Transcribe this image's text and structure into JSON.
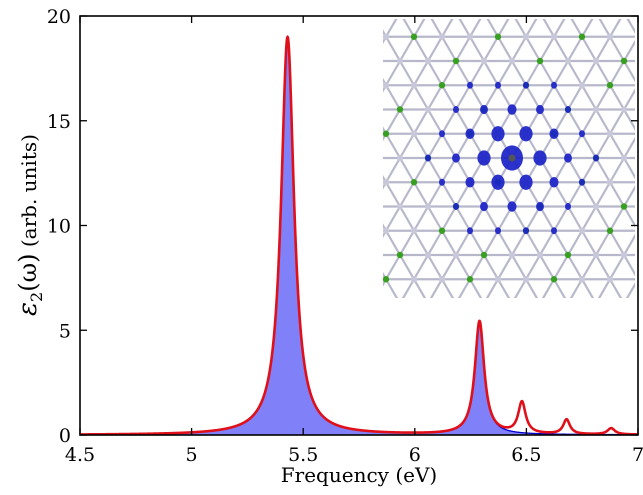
{
  "chart_data": {
    "type": "area",
    "xlabel": "Frequency (eV)",
    "ylabel_math": "ε",
    "ylabel_sub": "2",
    "ylabel_arg": "(ω)",
    "ylabel_units": "(arb. units)",
    "xlim": [
      4.5,
      7
    ],
    "ylim": [
      0,
      20
    ],
    "x_ticks": [
      "4.5",
      "5",
      "5.5",
      "6",
      "6.5",
      "7"
    ],
    "y_ticks": [
      "0",
      "5",
      "10",
      "15",
      "20"
    ],
    "grid": false,
    "series": [
      {
        "style": "filled-area",
        "color": "#8080f8",
        "edge_color": "#0000cc",
        "peaks": [
          {
            "x": 5.43,
            "height": 19.0,
            "width": 0.035
          },
          {
            "x": 6.29,
            "height": 5.4,
            "width": 0.025
          }
        ]
      },
      {
        "style": "line",
        "color": "#e0101a",
        "peaks": [
          {
            "x": 5.43,
            "height": 19.0,
            "width": 0.035
          },
          {
            "x": 6.29,
            "height": 5.4,
            "width": 0.025
          },
          {
            "x": 6.48,
            "height": 1.5,
            "width": 0.02
          },
          {
            "x": 6.68,
            "height": 0.7,
            "width": 0.018
          },
          {
            "x": 6.88,
            "height": 0.3,
            "width": 0.02
          }
        ]
      }
    ],
    "inset": {
      "type": "image",
      "description_colors": {
        "bond": "#b8b8cc",
        "atom_green": "#38a020",
        "orbital": "#1a22c8",
        "center": "#555555"
      }
    }
  }
}
